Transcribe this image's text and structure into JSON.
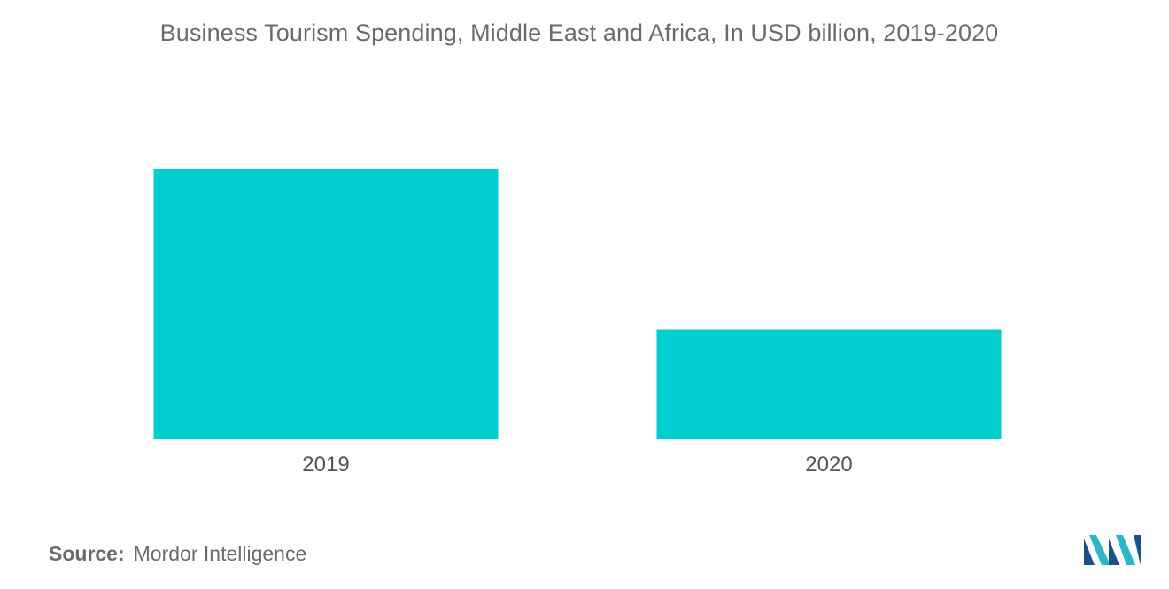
{
  "chart_data": {
    "type": "bar",
    "title": "Business Tourism Spending, Middle East and Africa, In USD billion, 2019-2020",
    "categories": [
      "2019",
      "2020"
    ],
    "values": [
      100,
      40.5
    ],
    "xlabel": "",
    "ylabel": "",
    "ylim": [
      0,
      100
    ],
    "grid": false,
    "legend": "none",
    "bar_color": "#00ced1"
  },
  "source": {
    "label": "Source:",
    "text": "Mordor Intelligence"
  },
  "logo": {
    "icon": "mordor-intelligence-logo",
    "colors": [
      "#1a4f8a",
      "#2ab5c9"
    ]
  }
}
